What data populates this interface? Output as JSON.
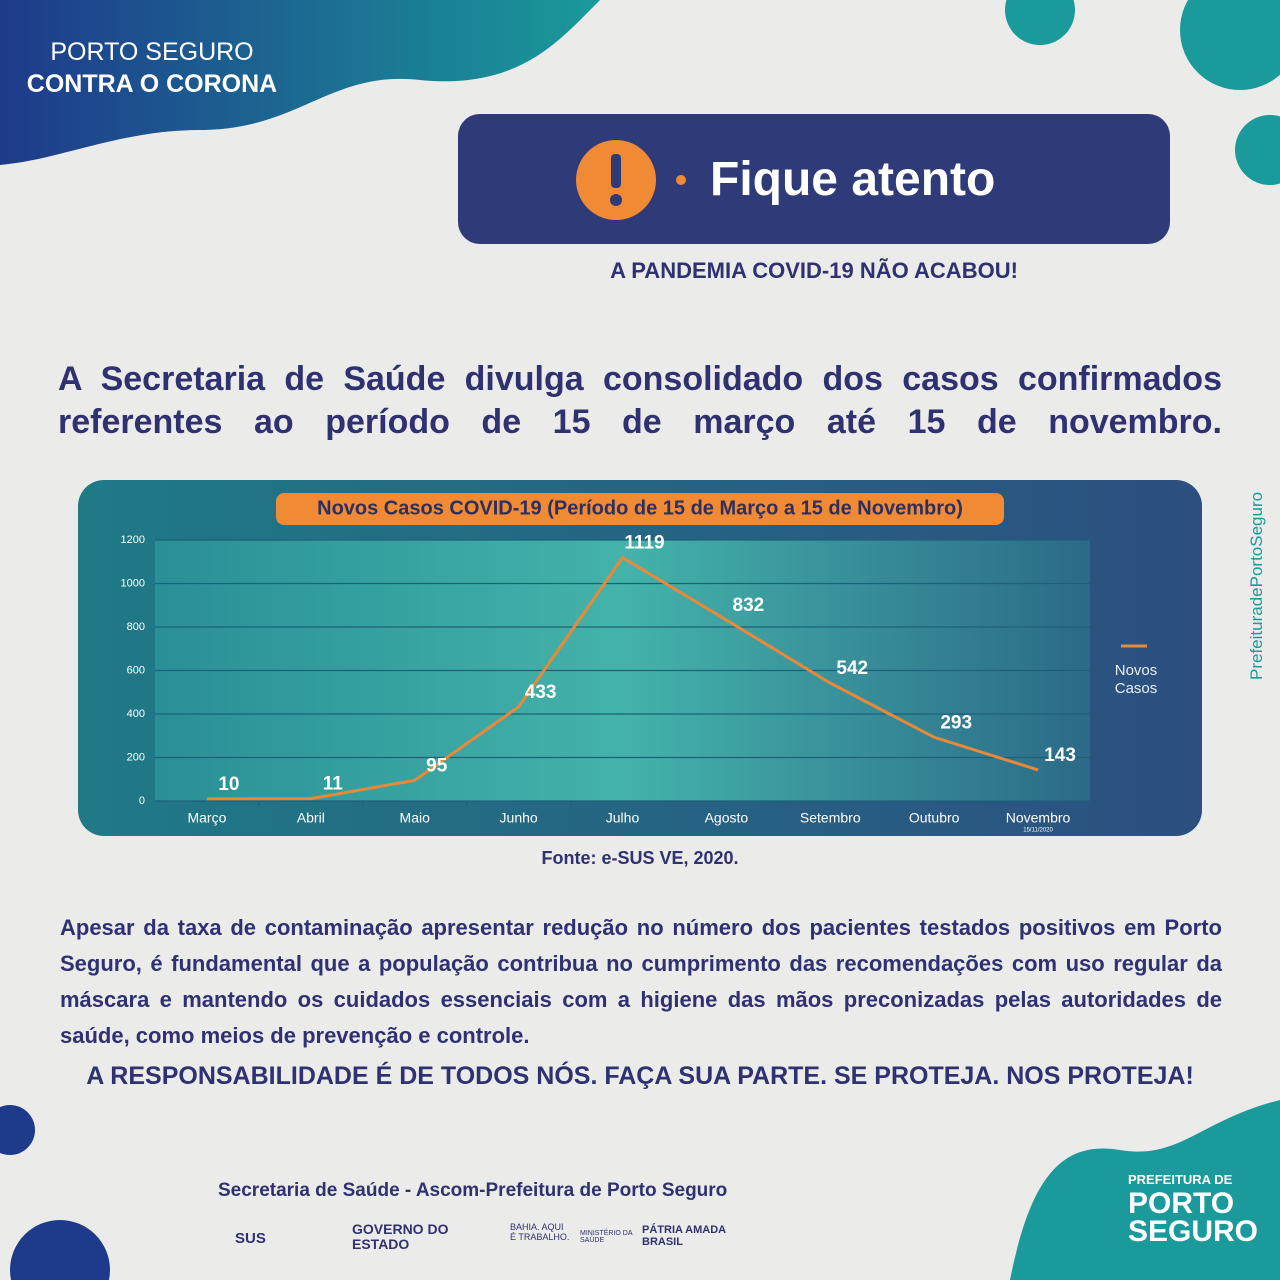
{
  "header": {
    "logo_top": "PORTO SEGURO",
    "logo_bottom": "CONTRA O CORONA",
    "alert": "Fique atento",
    "subtitle": "A PANDEMIA COVID-19 NÃO ACABOU!"
  },
  "headline": "A Secretaria de Saúde divulga consolidado dos casos confirmados referentes ao período de 15 de março até 15 de novembro.",
  "chart_data": {
    "type": "line",
    "title": "Novos Casos COVID-19 (Período de 15 de Março a 15 de Novembro)",
    "categories": [
      "Março",
      "Abril",
      "Maio",
      "Junho",
      "Julho",
      "Agosto",
      "Setembro",
      "Outubro",
      "Novembro"
    ],
    "series": [
      {
        "name": "Novos Casos",
        "color": "#e8893a",
        "values": [
          10,
          11,
          95,
          433,
          1119,
          832,
          542,
          293,
          143
        ]
      }
    ],
    "ylim": [
      0,
      1200
    ],
    "yticks": [
      0,
      200,
      400,
      600,
      800,
      1000,
      1200
    ],
    "grid": true,
    "legend": "right",
    "date_note": "15/11/2020"
  },
  "source": "Fonte: e-SUS VE, 2020.",
  "body": "Apesar da taxa de contaminação apresentar redução no número dos pacientes testados positivos em Porto Seguro, é fundamental que a população contribua no cumprimento das recomendações com uso regular da máscara e mantendo os cuidados essenciais com a higiene das mãos preconizadas pelas autoridades de saúde, como meios de prevenção e controle.",
  "call_to_action": "A RESPONSABILIDADE É DE TODOS NÓS. FAÇA SUA PARTE. SE PROTEJA. NOS PROTEJA!",
  "footer": {
    "credit": "Secretaria de Saúde - Ascom-Prefeitura de Porto Seguro",
    "logos": [
      "SUS",
      "GOVERNO DO ESTADO",
      "BAHIA. AQUI É TRABALHO.",
      "MINISTÉRIO DA SAÚDE",
      "PÁTRIA AMADA BRASIL"
    ],
    "city_top": "PREFEITURA DE",
    "city": "PORTO SEGURO"
  },
  "side_handle": "PrefeituradePortoSeguro"
}
